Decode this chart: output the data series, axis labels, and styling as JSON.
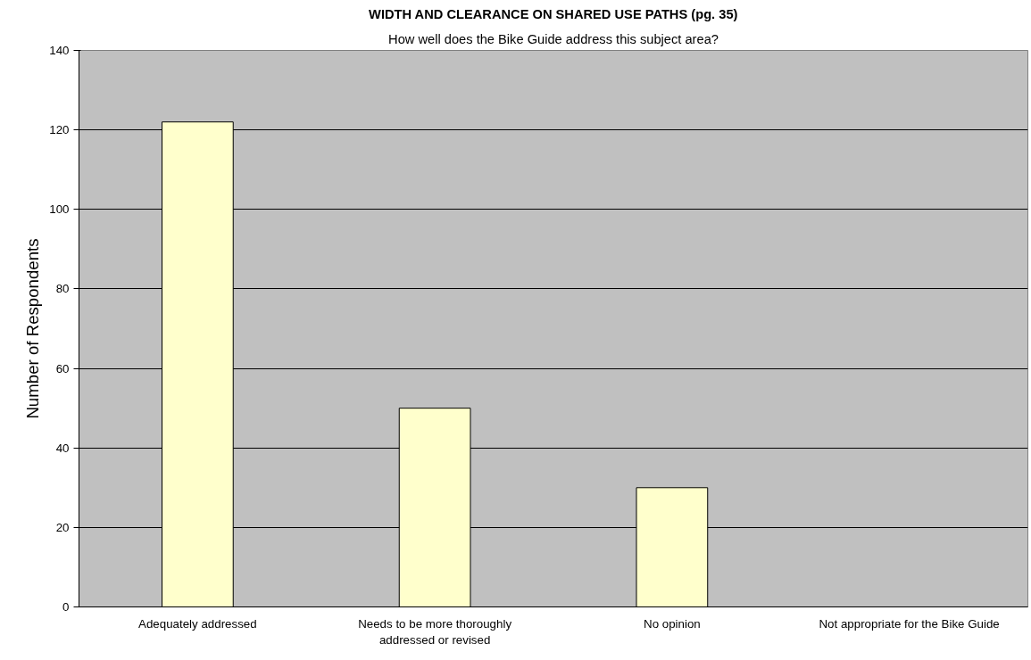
{
  "chart_data": {
    "type": "bar",
    "title": "WIDTH AND CLEARANCE ON SHARED USE PATHS (pg. 35)",
    "subtitle": "How well does the Bike Guide address this subject area?",
    "ylabel": "Number of Respondents",
    "categories": [
      "Adequately addressed",
      "Needs to be more thoroughly addressed or revised",
      "No opinion",
      "Not appropriate for the Bike Guide"
    ],
    "values": [
      122,
      50,
      30,
      0
    ],
    "color": "#ffffcc",
    "ylim": [
      0,
      140
    ],
    "yticks": [
      0,
      20,
      40,
      60,
      80,
      100,
      120,
      140
    ],
    "grid": "y"
  }
}
